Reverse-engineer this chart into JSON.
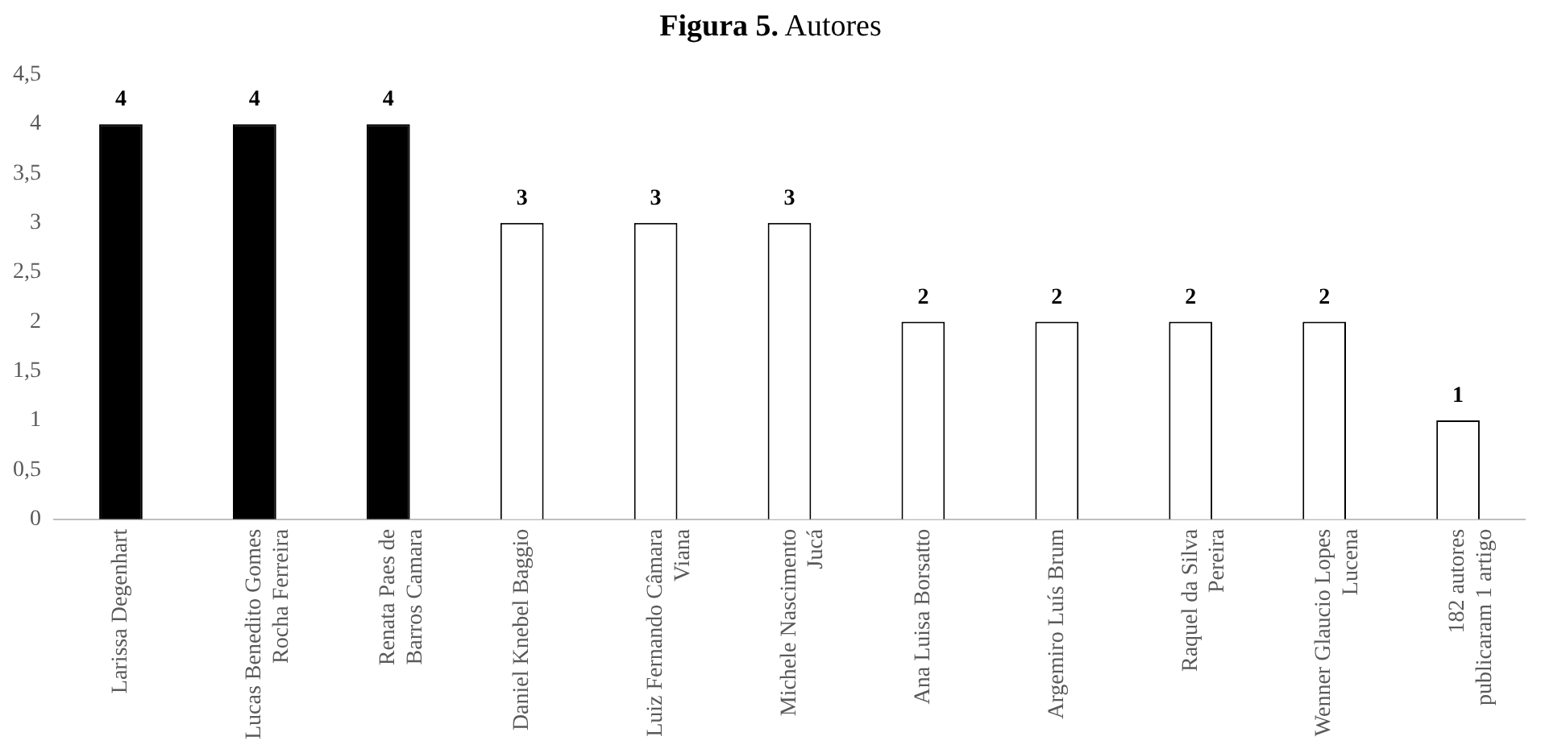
{
  "chart_data": {
    "type": "bar",
    "title": "Figura 5. Autores",
    "categories": [
      "Larissa Degenhart",
      "Lucas Benedito Gomes Rocha Ferreira",
      "Renata Paes de Barros Camara",
      "Daniel Knebel Baggio",
      "Luiz Fernando Câmara Viana",
      "Michele Nascimento Jucá",
      "Ana Luisa Borsatto",
      "Argemiro Luís Brum",
      "Raquel da Silva Pereira",
      "Wenner Glaucio Lopes Lucena",
      "182 autores publicaram 1 artigo"
    ],
    "values": [
      4,
      4,
      4,
      3,
      3,
      3,
      2,
      2,
      2,
      2,
      1
    ],
    "colors": [
      "#000000",
      "#000000",
      "#000000",
      "#ffffff",
      "#ffffff",
      "#ffffff",
      "#ffffff",
      "#ffffff",
      "#ffffff",
      "#ffffff",
      "#ffffff"
    ],
    "ylim": [
      0,
      4.5
    ],
    "yticks": [
      0,
      {
        "value": 0.5,
        "label": "0,5"
      },
      1,
      {
        "value": 1.5,
        "label": "1,5"
      },
      2,
      {
        "value": 2.5,
        "label": "2,5"
      },
      3,
      {
        "value": 3.5,
        "label": "3,5"
      },
      4,
      {
        "value": 4.5,
        "label": "4,5"
      }
    ],
    "data_labels": true,
    "grid": false,
    "legend": false
  }
}
